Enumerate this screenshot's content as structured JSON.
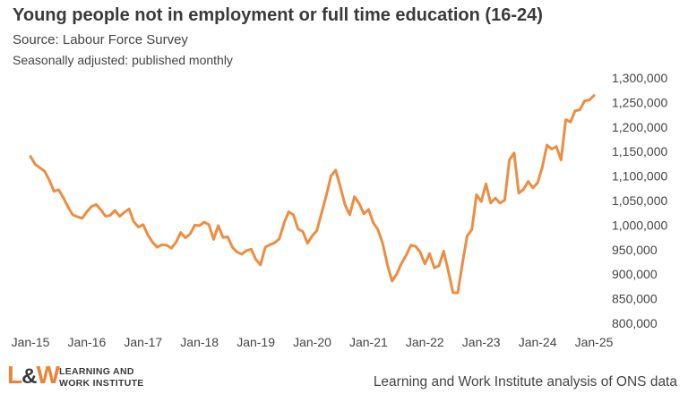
{
  "header": {
    "title": "Young people not in employment or full time education (16-24)",
    "source": "Source: Labour Force Survey",
    "subtitle": "Seasonally adjusted: published monthly"
  },
  "footer": {
    "logo_mark_l": "L",
    "logo_mark_amp": "&",
    "logo_mark_w": "W",
    "logo_line1": "LEARNING AND",
    "logo_line2": "WORK INSTITUTE",
    "credit": "Learning and Work Institute analysis of ONS data"
  },
  "colors": {
    "line": "#ed8d41",
    "text": "#3a3a3a",
    "accent": "#e8853a"
  },
  "chart_data": {
    "type": "line",
    "title": "Young people not in employment or full time education (16-24)",
    "xlabel": "",
    "ylabel": "",
    "ylim": [
      800000,
      1300000
    ],
    "yticks": [
      800000,
      850000,
      900000,
      950000,
      1000000,
      1050000,
      1100000,
      1150000,
      1200000,
      1250000,
      1300000
    ],
    "ytick_labels": [
      "800,000",
      "850,000",
      "900,000",
      "950,000",
      "1,000,000",
      "1,050,000",
      "1,100,000",
      "1,150,000",
      "1,200,000",
      "1,250,000",
      "1,300,000"
    ],
    "xticks": [
      "Jan-15",
      "Jan-16",
      "Jan-17",
      "Jan-18",
      "Jan-19",
      "Jan-20",
      "Jan-21",
      "Jan-22",
      "Jan-23",
      "Jan-24",
      "Jan-25"
    ],
    "grid": false,
    "legend": "none",
    "x_start": "Jan-15",
    "x_frequency": "monthly",
    "series": [
      {
        "values": [
          1140000,
          1124000,
          1117000,
          1110000,
          1092000,
          1069000,
          1072000,
          1056000,
          1037000,
          1021000,
          1017000,
          1014000,
          1027000,
          1038000,
          1042000,
          1031000,
          1018000,
          1020000,
          1030000,
          1018000,
          1026000,
          1033000,
          1007000,
          996000,
          1001000,
          980000,
          965000,
          955000,
          960000,
          959000,
          953000,
          965000,
          985000,
          974000,
          982000,
          1000000,
          999000,
          1006000,
          1001000,
          971000,
          999000,
          975000,
          976000,
          955000,
          945000,
          941000,
          948000,
          951000,
          930000,
          919000,
          955000,
          960000,
          964000,
          972000,
          1004000,
          1027000,
          1021000,
          992000,
          987000,
          963000,
          978000,
          989000,
          1025000,
          1060000,
          1100000,
          1112000,
          1078000,
          1041000,
          1021000,
          1058000,
          1044000,
          1023000,
          1032000,
          1005000,
          991000,
          963000,
          920000,
          886000,
          900000,
          922000,
          938000,
          959000,
          957000,
          945000,
          921000,
          942000,
          913000,
          917000,
          947000,
          906000,
          862000,
          862000,
          922000,
          978000,
          991000,
          1062000,
          1048000,
          1084000,
          1045000,
          1055000,
          1045000,
          1051000,
          1133000,
          1147000,
          1065000,
          1073000,
          1089000,
          1076000,
          1086000,
          1118000,
          1163000,
          1155000,
          1160000,
          1133000,
          1215000,
          1210000,
          1233000,
          1235000,
          1253000,
          1255000,
          1264000
        ]
      }
    ]
  }
}
